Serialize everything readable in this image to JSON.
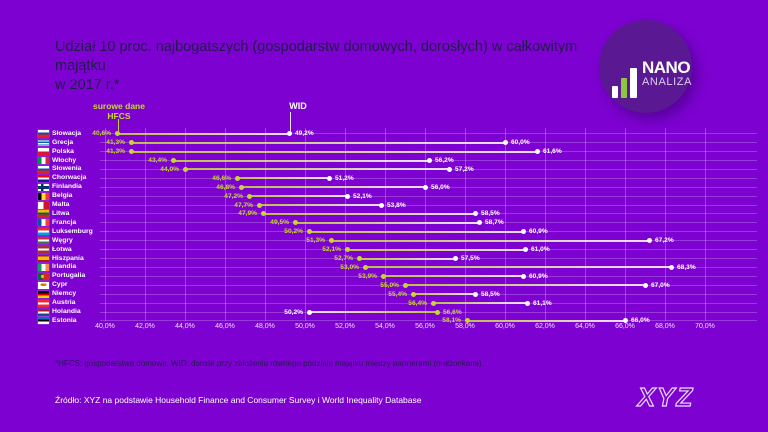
{
  "colors": {
    "background": "#7d02d1",
    "accent_green": "#c6d830",
    "wid_white": "#ffffff",
    "text_dark": "#221a4e",
    "logo_circle": "#5a1892",
    "logo_green": "#8dc63f"
  },
  "title": {
    "line1": "Udział 10 proc. najbogatszych (gospodarstw domowych, dorosłych)  w całkowitym majątku",
    "line2": "w 2017 r.*"
  },
  "legend": {
    "hfcs_line1": "surowe dane",
    "hfcs_line2": "HFCS",
    "wid": "WID"
  },
  "chart_data": {
    "type": "dumbbell",
    "title": "Udział 10 proc. najbogatszych (gospodarstw domowych, dorosłych) w całkowitym majątku w 2017 r.",
    "x_axis": {
      "min": 40,
      "max": 70,
      "step": 2,
      "unit": "%",
      "tick_labels": [
        "40,0%",
        "42,0%",
        "44,0%",
        "46,0%",
        "48,0%",
        "50,0%",
        "52,0%",
        "54,0%",
        "56,0%",
        "58,0%",
        "60,0%",
        "62,0%",
        "64,0%",
        "66,0%",
        "68,0%",
        "70,0%"
      ]
    },
    "series": [
      {
        "name": "surowe dane HFCS",
        "color": "#c6d830"
      },
      {
        "name": "WID",
        "color": "#ffffff"
      }
    ],
    "rows": [
      {
        "country": "Słowacja",
        "flag": "sk",
        "hfcs": 40.6,
        "wid": 49.2,
        "hfcs_label": "40,6%",
        "wid_label": "49,2%"
      },
      {
        "country": "Grecja",
        "flag": "gr",
        "hfcs": 41.3,
        "wid": 60.0,
        "hfcs_label": "41,3%",
        "wid_label": "60,0%"
      },
      {
        "country": "Polska",
        "flag": "pl",
        "hfcs": 41.3,
        "wid": 61.6,
        "hfcs_label": "41,3%",
        "wid_label": "61,6%"
      },
      {
        "country": "Włochy",
        "flag": "it",
        "hfcs": 43.4,
        "wid": 56.2,
        "hfcs_label": "43,4%",
        "wid_label": "56,2%"
      },
      {
        "country": "Słowenia",
        "flag": "si",
        "hfcs": 44.0,
        "wid": 57.2,
        "hfcs_label": "44,0%",
        "wid_label": "57,2%"
      },
      {
        "country": "Chorwacja",
        "flag": "hr",
        "hfcs": 46.6,
        "wid": 51.2,
        "hfcs_label": "46,6%",
        "wid_label": "51,2%"
      },
      {
        "country": "Finlandia",
        "flag": "fi",
        "hfcs": 46.8,
        "wid": 56.0,
        "hfcs_label": "46,8%",
        "wid_label": "56,0%"
      },
      {
        "country": "Belgia",
        "flag": "be",
        "hfcs": 47.2,
        "wid": 52.1,
        "hfcs_label": "47,2%",
        "wid_label": "52,1%"
      },
      {
        "country": "Malta",
        "flag": "mt",
        "hfcs": 47.7,
        "wid": 53.8,
        "hfcs_label": "47,7%",
        "wid_label": "53,8%"
      },
      {
        "country": "Litwa",
        "flag": "lt",
        "hfcs": 47.9,
        "wid": 58.5,
        "hfcs_label": "47,9%",
        "wid_label": "58,5%"
      },
      {
        "country": "Francja",
        "flag": "fr",
        "hfcs": 49.5,
        "wid": 58.7,
        "hfcs_label": "49,5%",
        "wid_label": "58,7%"
      },
      {
        "country": "Luksemburg",
        "flag": "lu",
        "hfcs": 50.2,
        "wid": 60.9,
        "hfcs_label": "50,2%",
        "wid_label": "60,9%"
      },
      {
        "country": "Węgry",
        "flag": "hu",
        "hfcs": 51.3,
        "wid": 67.2,
        "hfcs_label": "51,3%",
        "wid_label": "67,2%"
      },
      {
        "country": "Łotwa",
        "flag": "lv",
        "hfcs": 52.1,
        "wid": 61.0,
        "hfcs_label": "52,1%",
        "wid_label": "61,0%"
      },
      {
        "country": "Hiszpania",
        "flag": "es",
        "hfcs": 52.7,
        "wid": 57.5,
        "hfcs_label": "52,7%",
        "wid_label": "57,5%"
      },
      {
        "country": "Irlandia",
        "flag": "ie",
        "hfcs": 53.0,
        "wid": 68.3,
        "hfcs_label": "53,0%",
        "wid_label": "68,3%"
      },
      {
        "country": "Portugalia",
        "flag": "pt",
        "hfcs": 53.9,
        "wid": 60.9,
        "hfcs_label": "53,9%",
        "wid_label": "60,9%"
      },
      {
        "country": "Cypr",
        "flag": "cy",
        "hfcs": 55.0,
        "wid": 67.0,
        "hfcs_label": "55,0%",
        "wid_label": "67,0%"
      },
      {
        "country": "Niemcy",
        "flag": "de",
        "hfcs": 55.4,
        "wid": 58.5,
        "hfcs_label": "55,4%",
        "wid_label": "58,5%"
      },
      {
        "country": "Austria",
        "flag": "at",
        "hfcs": 56.4,
        "wid": 61.1,
        "hfcs_label": "56,4%",
        "wid_label": "61,1%"
      },
      {
        "country": "Holandia",
        "flag": "nl",
        "hfcs": 56.6,
        "wid": 50.2,
        "hfcs_label": "56,6%",
        "wid_label": "50,2%"
      },
      {
        "country": "Estonia",
        "flag": "ee",
        "hfcs": 58.1,
        "wid": 66.0,
        "hfcs_label": "58,1%",
        "wid_label": "66,0%"
      }
    ]
  },
  "footnote": "*HFCS: gospodarstwa domowa, WID: dorośli przy założeniu równego podziału majątku między partnerami (małżonkami).",
  "source": "Źródło: XYZ na podstawie Household Finance and Consumer Survey i World Inequality Database",
  "logos": {
    "nano_line1": "NANO",
    "nano_line2": "ANALIZA",
    "xyz": "XYZ"
  }
}
